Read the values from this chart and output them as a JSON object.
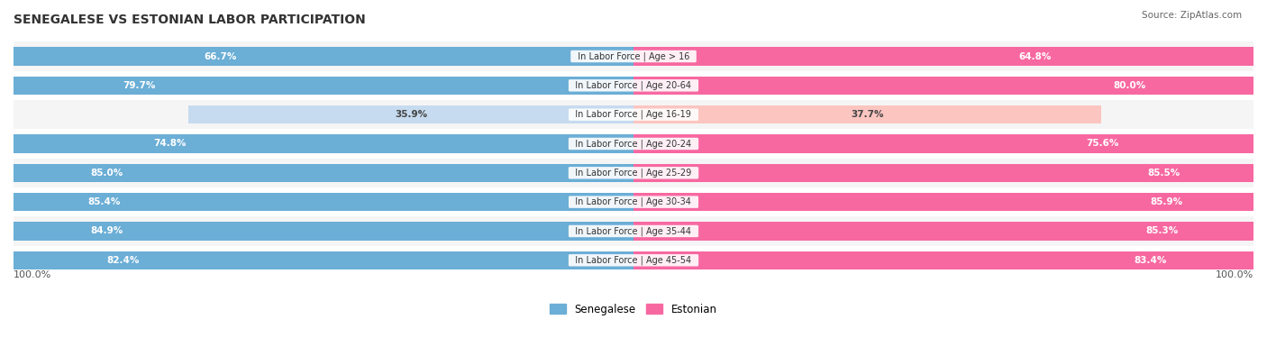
{
  "title": "SENEGALESE VS ESTONIAN LABOR PARTICIPATION",
  "source": "Source: ZipAtlas.com",
  "categories": [
    "In Labor Force | Age > 16",
    "In Labor Force | Age 20-64",
    "In Labor Force | Age 16-19",
    "In Labor Force | Age 20-24",
    "In Labor Force | Age 25-29",
    "In Labor Force | Age 30-34",
    "In Labor Force | Age 35-44",
    "In Labor Force | Age 45-54"
  ],
  "senegalese_values": [
    66.7,
    79.7,
    35.9,
    74.8,
    85.0,
    85.4,
    84.9,
    82.4
  ],
  "estonian_values": [
    64.8,
    80.0,
    37.7,
    75.6,
    85.5,
    85.9,
    85.3,
    83.4
  ],
  "senegalese_labels": [
    "66.7%",
    "79.7%",
    "35.9%",
    "74.8%",
    "85.0%",
    "85.4%",
    "84.9%",
    "82.4%"
  ],
  "estonian_labels": [
    "64.8%",
    "80.0%",
    "37.7%",
    "75.6%",
    "85.5%",
    "85.9%",
    "85.3%",
    "83.4%"
  ],
  "senegalese_color_high": "#6baed6",
  "senegalese_color_low": "#c6dbef",
  "estonian_color_high": "#f768a1",
  "estonian_color_low": "#fcc5c0",
  "bar_height": 0.35,
  "row_bg_color_odd": "#f5f5f5",
  "row_bg_color_even": "#ffffff",
  "xlim": [
    0,
    100
  ],
  "legend_label_senegalese": "Senegalese",
  "legend_label_estonian": "Estonian",
  "bottom_left_label": "100.0%",
  "bottom_right_label": "100.0%",
  "threshold": 50
}
